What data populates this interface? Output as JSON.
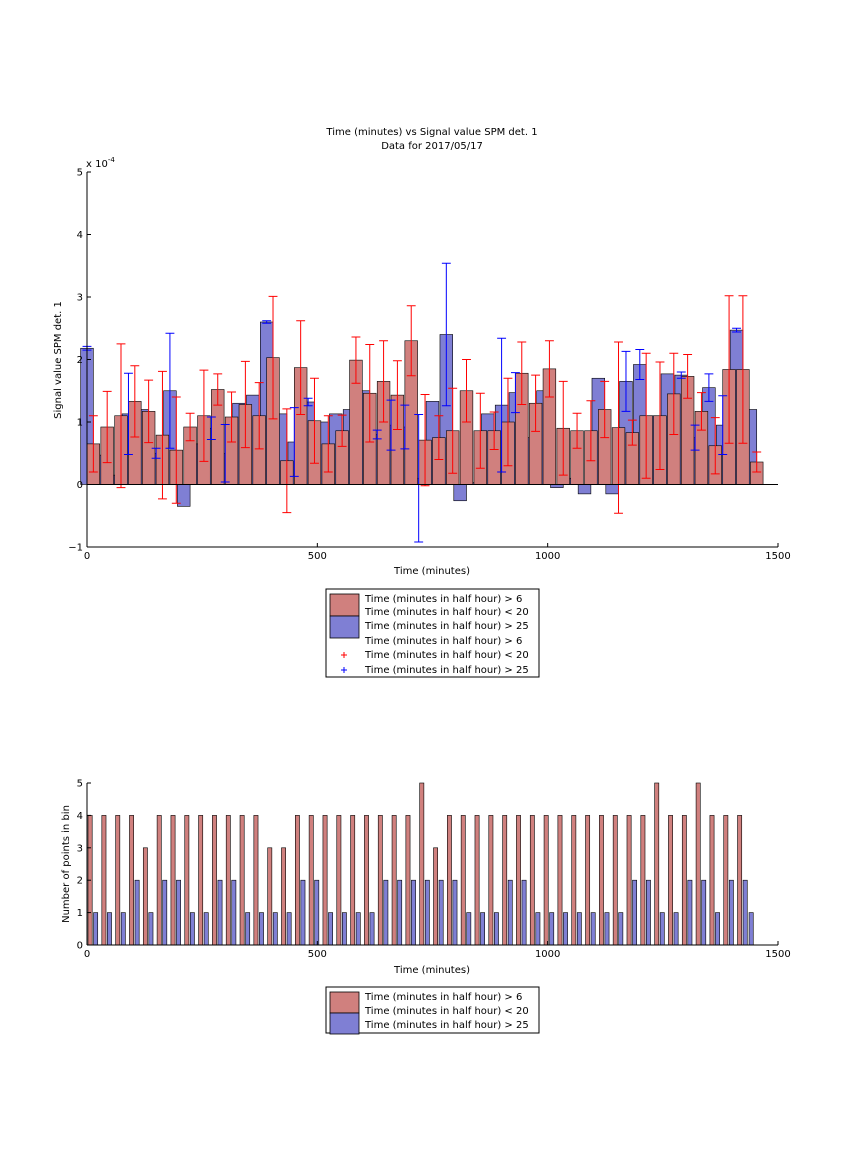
{
  "chart_data": [
    {
      "type": "bar",
      "title": "Time (minutes) vs Signal value SPM det. 1",
      "subtitle": "Data for 2017/05/17",
      "xlabel": "Time (minutes)",
      "ylabel": "Signal value SPM det. 1",
      "y_exponent": "x 10",
      "y_exponent_power": "-4",
      "xlim": [
        0,
        1500
      ],
      "ylim": [
        -1,
        5
      ],
      "xticks": [
        0,
        500,
        1000,
        1500
      ],
      "xtick_labels": [
        "0",
        "500",
        "1000",
        "1500"
      ],
      "yticks": [
        -1,
        0,
        1,
        2,
        3,
        4,
        5
      ],
      "ytick_labels": [
        "−1",
        "0",
        "1",
        "2",
        "3",
        "4",
        "5"
      ],
      "grid": false,
      "legend_position": "below",
      "legend": [
        {
          "marker": "patch",
          "color": "#d0807e",
          "label": "Time (minutes in half hour) > 6"
        },
        {
          "marker": "none",
          "label": "Time (minutes in half hour) < 20"
        },
        {
          "marker": "patch",
          "color": "#7f7fd4",
          "label": "Time (minutes in half hour) > 25"
        },
        {
          "marker": "none",
          "label": "Time (minutes in half hour) > 6"
        },
        {
          "marker": "plus",
          "color": "#ff0000",
          "label": "Time (minutes in half hour) < 20"
        },
        {
          "marker": "plus",
          "color": "#0000ff",
          "label": "Time (minutes in half hour) > 25"
        }
      ],
      "series": [
        {
          "color": "#d0807e",
          "edge": "#000000",
          "err_color": "#ff0000",
          "x": [
            0,
            30,
            60,
            90,
            120,
            150,
            180,
            210,
            240,
            270,
            300,
            330,
            360,
            390,
            420,
            450,
            480,
            510,
            540,
            570,
            600,
            630,
            660,
            690,
            720,
            750,
            780,
            810,
            840,
            870,
            900,
            930,
            960,
            990,
            1020,
            1050,
            1080,
            1110,
            1140,
            1170,
            1200,
            1230,
            1260,
            1290,
            1320,
            1350,
            1380,
            1410,
            1440
          ],
          "values": [
            0.65,
            0.92,
            1.1,
            1.33,
            1.17,
            0.79,
            0.55,
            0.92,
            1.1,
            1.52,
            1.08,
            1.28,
            1.1,
            2.03,
            0.38,
            1.87,
            1.02,
            0.65,
            0.86,
            1.99,
            1.46,
            1.65,
            1.43,
            2.3,
            0.71,
            0.75,
            0.86,
            1.5,
            0.86,
            0.86,
            1.0,
            1.78,
            1.3,
            1.85,
            0.9,
            0.86,
            0.86,
            1.2,
            0.91,
            0.83,
            1.1,
            1.1,
            1.45,
            1.73,
            1.17,
            0.62,
            1.84,
            1.84,
            0.36
          ],
          "err": [
            0.45,
            0.57,
            1.15,
            0.57,
            0.5,
            1.02,
            0.85,
            0.22,
            0.73,
            0.25,
            0.4,
            0.69,
            0.53,
            0.98,
            0.83,
            0.75,
            0.68,
            0.45,
            0.25,
            0.37,
            0.78,
            0.65,
            0.55,
            0.56,
            0.73,
            0.35,
            0.68,
            0.5,
            0.6,
            0.3,
            0.7,
            0.5,
            0.45,
            0.45,
            0.75,
            0.28,
            0.48,
            0.45,
            1.37,
            0.2,
            1.0,
            0.86,
            0.65,
            0.35,
            0.3,
            0.45,
            1.18,
            1.18,
            0.16
          ]
        },
        {
          "color": "#7f7fd4",
          "edge": "#000000",
          "err_color": "#0000ff",
          "x": [
            0,
            30,
            60,
            90,
            120,
            150,
            180,
            210,
            240,
            270,
            300,
            330,
            360,
            390,
            420,
            450,
            480,
            510,
            540,
            570,
            600,
            630,
            660,
            690,
            720,
            750,
            780,
            810,
            840,
            870,
            900,
            930,
            960,
            990,
            1020,
            1050,
            1080,
            1110,
            1140,
            1170,
            1200,
            1230,
            1260,
            1290,
            1320,
            1350,
            1380,
            1410,
            1440
          ],
          "values": [
            2.18,
            0.47,
            0.15,
            1.13,
            1.2,
            0.5,
            1.5,
            -0.35,
            0.65,
            0.9,
            0.5,
            1.3,
            1.43,
            2.6,
            1.13,
            0.68,
            1.32,
            1.0,
            1.13,
            1.2,
            1.5,
            0.8,
            0.95,
            0.92,
            0.1,
            1.33,
            2.4,
            -0.26,
            0.03,
            1.13,
            1.27,
            1.47,
            0.75,
            1.5,
            -0.05,
            0.1,
            -0.15,
            1.7,
            -0.15,
            1.65,
            1.92,
            1.1,
            1.77,
            1.75,
            0.75,
            1.55,
            0.95,
            2.47,
            1.2
          ],
          "err": [
            0.03,
            0.0,
            0.0,
            0.65,
            0.0,
            0.08,
            0.92,
            0.0,
            0.0,
            0.18,
            0.46,
            0.0,
            0.0,
            0.02,
            0.0,
            0.55,
            0.06,
            0.0,
            0.0,
            0.0,
            0.0,
            0.07,
            0.4,
            0.35,
            1.02,
            0.0,
            1.14,
            0.0,
            0.0,
            0.0,
            1.07,
            0.32,
            0.0,
            0.0,
            0.0,
            0.0,
            0.0,
            0.0,
            0.0,
            0.48,
            0.24,
            0.0,
            0.0,
            0.05,
            0.2,
            0.22,
            0.47,
            0.03,
            0.0
          ]
        }
      ]
    },
    {
      "type": "bar",
      "title": "",
      "xlabel": "Time (minutes)",
      "ylabel": "Number of points in bin",
      "xlim": [
        0,
        1500
      ],
      "ylim": [
        0,
        5
      ],
      "xticks": [
        0,
        500,
        1000,
        1500
      ],
      "xtick_labels": [
        "0",
        "500",
        "1000",
        "1500"
      ],
      "yticks": [
        0,
        1,
        2,
        3,
        4,
        5
      ],
      "ytick_labels": [
        "0",
        "1",
        "2",
        "3",
        "4",
        "5"
      ],
      "grid": false,
      "legend_position": "below",
      "legend": [
        {
          "marker": "patch",
          "color": "#d0807e",
          "label": "Time (minutes in half hour) > 6"
        },
        {
          "marker": "none",
          "label": "Time (minutes in half hour) < 20"
        },
        {
          "marker": "patch",
          "color": "#7f7fd4",
          "label": "Time (minutes in half hour) > 25"
        }
      ],
      "series": [
        {
          "color": "#d0807e",
          "edge": "#000000",
          "x": [
            0,
            30,
            60,
            90,
            120,
            150,
            180,
            210,
            240,
            270,
            300,
            330,
            360,
            390,
            420,
            450,
            480,
            510,
            540,
            570,
            600,
            630,
            660,
            690,
            720,
            750,
            780,
            810,
            840,
            870,
            900,
            930,
            960,
            990,
            1020,
            1050,
            1080,
            1110,
            1140,
            1170,
            1200,
            1230,
            1260,
            1290,
            1320,
            1350,
            1380,
            1410
          ],
          "values": [
            4,
            4,
            4,
            4,
            3,
            4,
            4,
            4,
            4,
            4,
            4,
            4,
            4,
            3,
            3,
            4,
            4,
            4,
            4,
            4,
            4,
            4,
            4,
            4,
            5,
            3,
            4,
            4,
            4,
            4,
            4,
            4,
            4,
            4,
            4,
            4,
            4,
            4,
            4,
            4,
            4,
            5,
            4,
            4,
            5,
            4,
            4,
            4
          ]
        },
        {
          "color": "#7f7fd4",
          "edge": "#000000",
          "x": [
            12,
            42,
            72,
            102,
            132,
            162,
            192,
            222,
            252,
            282,
            312,
            342,
            372,
            402,
            432,
            462,
            492,
            522,
            552,
            582,
            612,
            642,
            672,
            702,
            732,
            762,
            792,
            822,
            852,
            882,
            912,
            942,
            972,
            1002,
            1032,
            1062,
            1092,
            1122,
            1152,
            1182,
            1212,
            1242,
            1272,
            1302,
            1332,
            1362,
            1392,
            1422,
            1435
          ],
          "values": [
            1,
            1,
            1,
            2,
            1,
            2,
            2,
            1,
            1,
            2,
            2,
            1,
            1,
            1,
            1,
            2,
            2,
            1,
            1,
            1,
            1,
            2,
            2,
            2,
            2,
            2,
            2,
            1,
            1,
            1,
            2,
            2,
            1,
            1,
            1,
            1,
            1,
            1,
            1,
            2,
            2,
            1,
            1,
            2,
            2,
            1,
            2,
            2,
            1
          ]
        }
      ]
    }
  ]
}
